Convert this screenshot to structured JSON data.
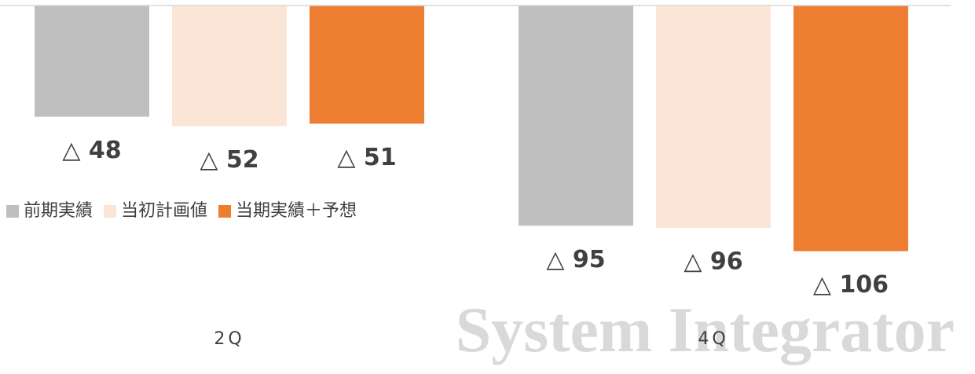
{
  "chart_data": {
    "type": "bar",
    "categories": [
      "2Q",
      "4Q"
    ],
    "series": [
      {
        "name": "前期実績",
        "color": "#bfbfbf",
        "values": [
          -48,
          -95
        ],
        "value_labels": [
          "△ 48",
          "△ 95"
        ]
      },
      {
        "name": "当初計画値",
        "color": "#fbe5d6",
        "values": [
          -52,
          -96
        ],
        "value_labels": [
          "△ 52",
          "△ 96"
        ]
      },
      {
        "name": "当期実績＋予想",
        "color": "#ed7d31",
        "values": [
          -51,
          -106
        ],
        "value_labels": [
          "△ 51",
          "△ 106"
        ]
      }
    ],
    "ylim": [
      -150,
      0
    ],
    "watermark": "System Integrator"
  }
}
